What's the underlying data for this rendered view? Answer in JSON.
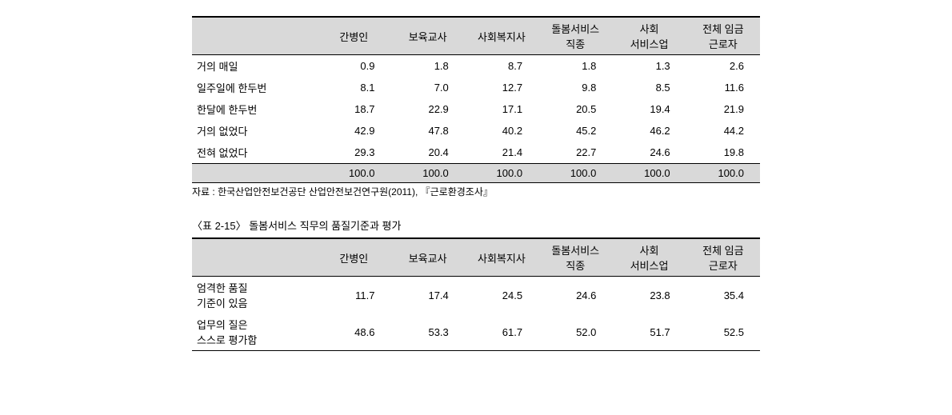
{
  "table1": {
    "headers": [
      "",
      "간병인",
      "보육교사",
      "사회복지사",
      "돌봄서비스\n직종",
      "사회\n서비스업",
      "전체 임금\n근로자"
    ],
    "rows": [
      [
        "거의 매일",
        "0.9",
        "1.8",
        "8.7",
        "1.8",
        "1.3",
        "2.6"
      ],
      [
        "일주일에 한두번",
        "8.1",
        "7.0",
        "12.7",
        "9.8",
        "8.5",
        "11.6"
      ],
      [
        "한달에 한두번",
        "18.7",
        "22.9",
        "17.1",
        "20.5",
        "19.4",
        "21.9"
      ],
      [
        "거의 없었다",
        "42.9",
        "47.8",
        "40.2",
        "45.2",
        "46.2",
        "44.2"
      ],
      [
        "전혀 없었다",
        "29.3",
        "20.4",
        "21.4",
        "22.7",
        "24.6",
        "19.8"
      ]
    ],
    "totals": [
      "",
      "100.0",
      "100.0",
      "100.0",
      "100.0",
      "100.0",
      "100.0"
    ]
  },
  "source": "자료 : 한국산업안전보건공단 산업안전보건연구원(2011), 『근로환경조사』",
  "table2": {
    "caption": "〈표 2-15〉 돌봄서비스 직무의 품질기준과 평가",
    "headers": [
      "",
      "간병인",
      "보육교사",
      "사회복지사",
      "돌봄서비스\n직종",
      "사회\n서비스업",
      "전체 임금\n근로자"
    ],
    "rows": [
      [
        "엄격한 품질\n기준이 있음",
        "11.7",
        "17.4",
        "24.5",
        "24.6",
        "23.8",
        "35.4"
      ],
      [
        "업무의 질은\n스스로 평가함",
        "48.6",
        "53.3",
        "61.7",
        "52.0",
        "51.7",
        "52.5"
      ]
    ]
  }
}
